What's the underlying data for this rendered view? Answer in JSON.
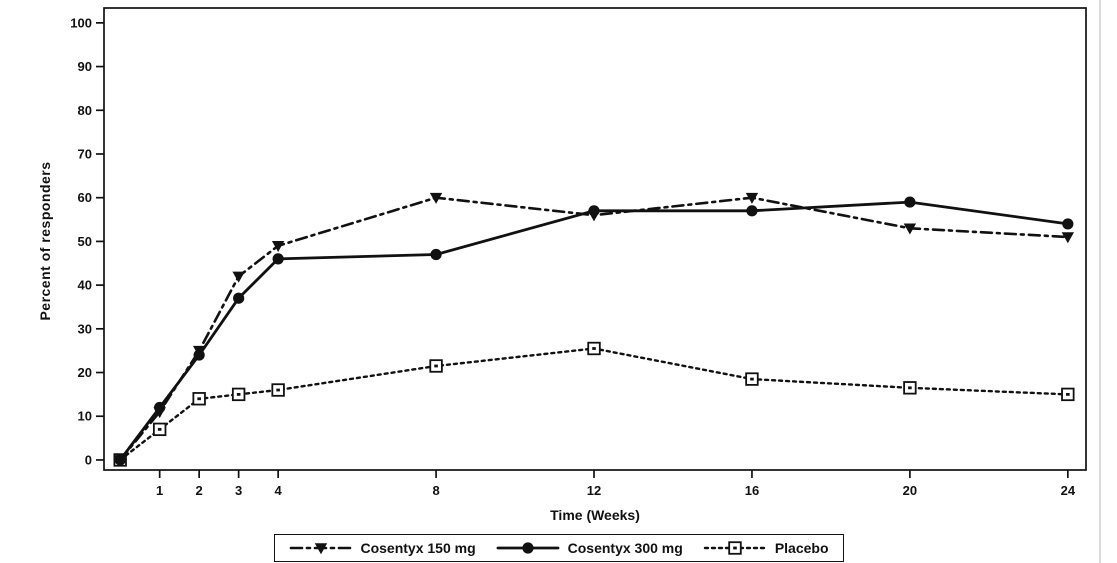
{
  "window": {
    "background": "#ffffff",
    "right_edge_color": "#dcdcdc"
  },
  "colors": {
    "ink": "#111111",
    "marker_open_fill": "#ffffff"
  },
  "chart_data": {
    "type": "line",
    "title": "",
    "xlabel": "Time (Weeks)",
    "ylabel": "Percent of responders",
    "x": [
      0,
      1,
      2,
      3,
      4,
      8,
      12,
      16,
      20,
      24
    ],
    "x_ticks": [
      1,
      2,
      3,
      4,
      8,
      12,
      16,
      20,
      24
    ],
    "y_ticks": [
      0,
      10,
      20,
      30,
      40,
      50,
      60,
      70,
      80,
      90,
      100
    ],
    "xlim": [
      -0.41,
      24.46
    ],
    "ylim": [
      -2.3,
      103.4
    ],
    "grid": false,
    "legend_position": "bottom",
    "series": [
      {
        "name": "Cosentyx 150 mg",
        "marker": "triangle-down-filled",
        "line_style": "dash-dot",
        "values": [
          0,
          11,
          25,
          42,
          49,
          60,
          56,
          60,
          53,
          51
        ]
      },
      {
        "name": "Cosentyx 300 mg",
        "marker": "circle-filled",
        "line_style": "solid",
        "values": [
          0,
          12,
          24,
          37,
          46,
          47,
          57,
          57,
          59,
          54
        ]
      },
      {
        "name": "Placebo",
        "marker": "square-open",
        "line_style": "dotted",
        "values": [
          0,
          7,
          14,
          15,
          16,
          21.5,
          25.5,
          18.5,
          16.5,
          15
        ]
      }
    ]
  }
}
